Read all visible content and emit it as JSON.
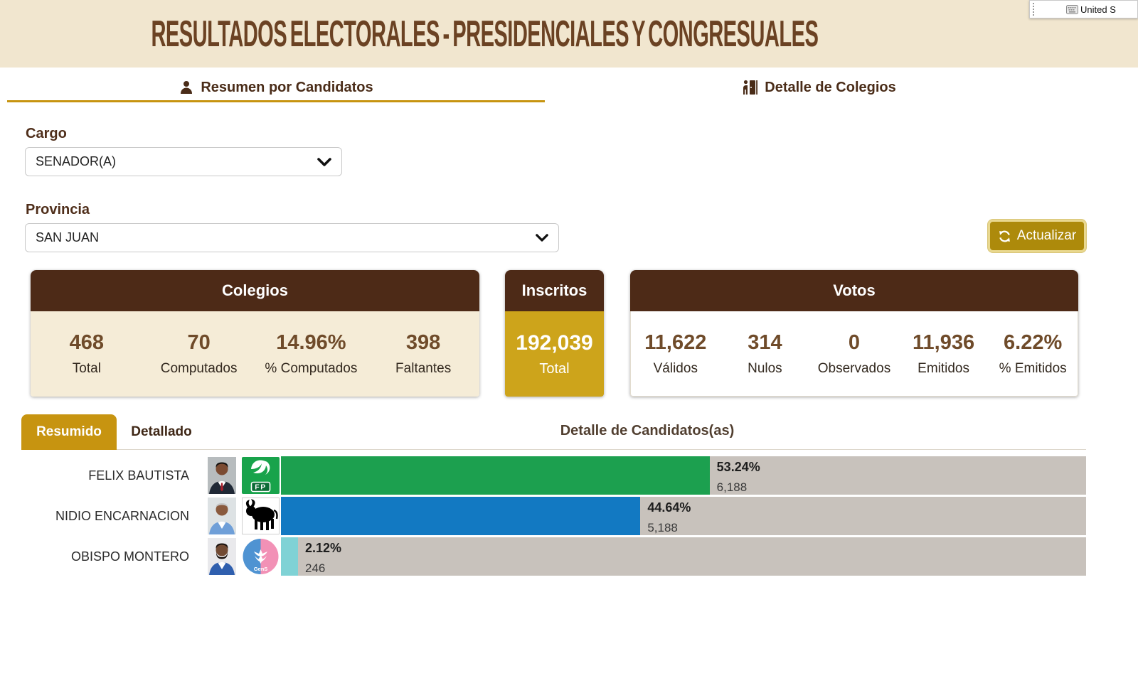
{
  "os": {
    "language_bar_label": "United S"
  },
  "header": {
    "title": "RESULTADOS ELECTORALES - PRESIDENCIALES Y CONGRESUALES"
  },
  "nav_tabs": {
    "resumen": "Resumen por Candidatos",
    "detalle": "Detalle de Colegios"
  },
  "filters": {
    "cargo_label": "Cargo",
    "cargo_value": "SENADOR(A)",
    "provincia_label": "Provincia",
    "provincia_value": "SAN JUAN",
    "refresh_label": "Actualizar"
  },
  "cards": {
    "colegios": {
      "title": "Colegios",
      "stats": [
        {
          "value": "468",
          "label": "Total"
        },
        {
          "value": "70",
          "label": "Computados"
        },
        {
          "value": "14.96%",
          "label": "% Computados"
        },
        {
          "value": "398",
          "label": "Faltantes"
        }
      ]
    },
    "inscritos": {
      "title": "Inscritos",
      "value": "192,039",
      "label": "Total"
    },
    "votos": {
      "title": "Votos",
      "stats": [
        {
          "value": "11,622",
          "label": "Válidos"
        },
        {
          "value": "314",
          "label": "Nulos"
        },
        {
          "value": "0",
          "label": "Observados"
        },
        {
          "value": "11,936",
          "label": "Emitidos"
        },
        {
          "value": "6.22%",
          "label": "% Emitidos"
        }
      ]
    }
  },
  "results": {
    "tab_resumido": "Resumido",
    "tab_detallado": "Detallado",
    "heading": "Detalle de Candidatos(as)"
  },
  "chart_data": {
    "type": "bar",
    "orientation": "horizontal",
    "title": "Detalle de Candidatos(as)",
    "categories": [
      "FELIX BAUTISTA",
      "NIDIO ENCARNACION",
      "OBISPO MONTERO"
    ],
    "values": [
      6188,
      5188,
      246
    ],
    "percents": [
      53.24,
      44.64,
      2.12
    ],
    "track_color": "#c8c2bc",
    "rows": [
      {
        "candidate": "FELIX BAUTISTA",
        "party_logo": "fp-logo",
        "percent": 53.24,
        "percent_label": "53.24%",
        "votes": 6188,
        "votes_label": "6,188",
        "bar_color": "#1ca04f"
      },
      {
        "candidate": "NIDIO ENCARNACION",
        "party_logo": "bull-logo",
        "percent": 44.64,
        "percent_label": "44.64%",
        "votes": 5188,
        "votes_label": "5,188",
        "bar_color": "#1279c2"
      },
      {
        "candidate": "OBISPO MONTERO",
        "party_logo": "gens-logo",
        "percent": 2.12,
        "percent_label": "2.12%",
        "votes": 246,
        "votes_label": "246",
        "bar_color": "#7fd2d5"
      }
    ]
  },
  "colors": {
    "band_cream": "#f1e6cf",
    "title_brown": "#6b4223",
    "accent_gold": "#c79410",
    "card_header_brown": "#4d2a17",
    "inscritos_gold": "#cda41b"
  }
}
